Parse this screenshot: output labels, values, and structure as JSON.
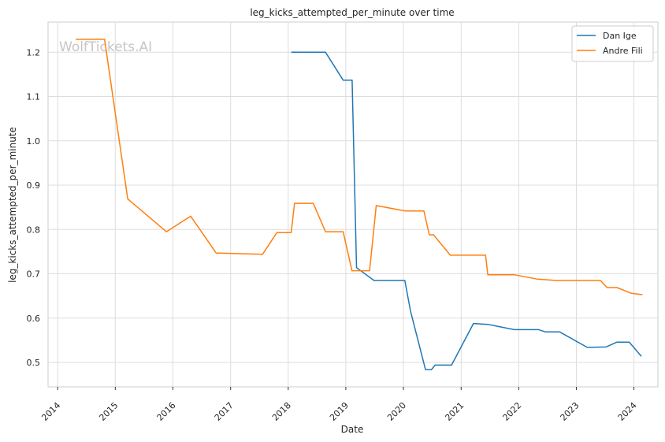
{
  "chart_data": {
    "type": "line",
    "title": "leg_kicks_attempted_per_minute over time",
    "xlabel": "Date",
    "ylabel": "leg_kicks_attempted_per_minute",
    "watermark": "WolfTickets.AI",
    "x_ticks": [
      "2014",
      "2015",
      "2016",
      "2017",
      "2018",
      "2019",
      "2020",
      "2021",
      "2022",
      "2023",
      "2024"
    ],
    "y_ticks": [
      "0.5",
      "0.6",
      "0.7",
      "0.8",
      "0.9",
      "1.0",
      "1.1",
      "1.2"
    ],
    "xlim": [
      "2013-11-01",
      "2024-06-01"
    ],
    "ylim": [
      0.445,
      1.268
    ],
    "grid": true,
    "legend_position": "top-right",
    "series": [
      {
        "name": "Dan Ige",
        "color": "#1f77b4",
        "points": [
          [
            "2018-01-20",
            1.2
          ],
          [
            "2018-08-25",
            1.2
          ],
          [
            "2018-12-15",
            1.137
          ],
          [
            "2019-02-10",
            1.137
          ],
          [
            "2019-03-10",
            0.714
          ],
          [
            "2019-06-29",
            0.685
          ],
          [
            "2020-01-10",
            0.685
          ],
          [
            "2020-02-15",
            0.616
          ],
          [
            "2020-05-20",
            0.484
          ],
          [
            "2020-06-27",
            0.484
          ],
          [
            "2020-07-20",
            0.494
          ],
          [
            "2020-11-01",
            0.494
          ],
          [
            "2021-03-20",
            0.588
          ],
          [
            "2021-06-19",
            0.586
          ],
          [
            "2021-12-04",
            0.574
          ],
          [
            "2022-05-07",
            0.574
          ],
          [
            "2022-06-18",
            0.569
          ],
          [
            "2022-09-17",
            0.569
          ],
          [
            "2023-03-11",
            0.534
          ],
          [
            "2023-07-08",
            0.535
          ],
          [
            "2023-09-16",
            0.546
          ],
          [
            "2023-12-02",
            0.546
          ],
          [
            "2024-02-17",
            0.514
          ]
        ]
      },
      {
        "name": "Andre Fili",
        "color": "#ff7f0e",
        "points": [
          [
            "2014-04-26",
            1.229
          ],
          [
            "2014-10-25",
            1.229
          ],
          [
            "2015-03-21",
            0.869
          ],
          [
            "2015-11-21",
            0.795
          ],
          [
            "2016-04-23",
            0.83
          ],
          [
            "2016-10-01",
            0.747
          ],
          [
            "2017-07-22",
            0.744
          ],
          [
            "2017-10-21",
            0.793
          ],
          [
            "2018-01-20",
            0.793
          ],
          [
            "2018-02-10",
            0.859
          ],
          [
            "2018-06-09",
            0.859
          ],
          [
            "2018-08-25",
            0.795
          ],
          [
            "2018-12-15",
            0.795
          ],
          [
            "2019-02-09",
            0.707
          ],
          [
            "2019-06-01",
            0.707
          ],
          [
            "2019-07-13",
            0.854
          ],
          [
            "2020-01-10",
            0.842
          ],
          [
            "2020-05-10",
            0.842
          ],
          [
            "2020-06-13",
            0.788
          ],
          [
            "2020-07-10",
            0.788
          ],
          [
            "2020-10-24",
            0.742
          ],
          [
            "2021-06-05",
            0.742
          ],
          [
            "2021-06-19",
            0.698
          ],
          [
            "2021-12-04",
            0.698
          ],
          [
            "2022-04-30",
            0.688
          ],
          [
            "2022-08-27",
            0.685
          ],
          [
            "2023-06-03",
            0.685
          ],
          [
            "2023-07-15",
            0.669
          ],
          [
            "2023-09-16",
            0.669
          ],
          [
            "2023-12-16",
            0.656
          ],
          [
            "2024-02-24",
            0.653
          ]
        ]
      }
    ]
  }
}
